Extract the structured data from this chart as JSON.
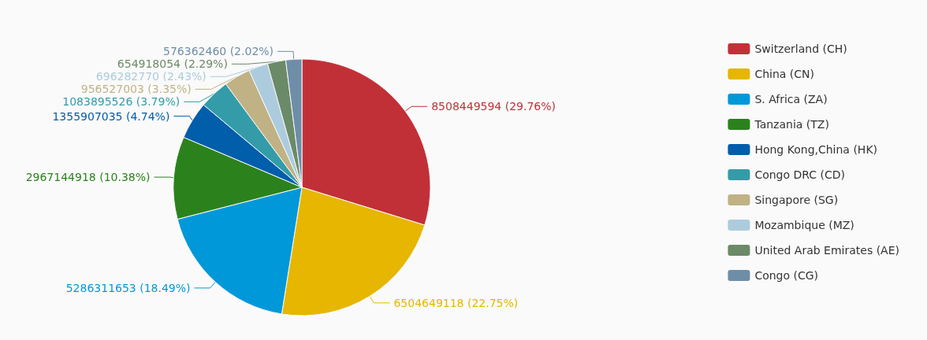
{
  "chart_data": {
    "type": "pie",
    "categories": [
      "Switzerland (CH)",
      "China (CN)",
      "S. Africa (ZA)",
      "Tanzania (TZ)",
      "Hong Kong,China (HK)",
      "Congo DRC (CD)",
      "Singapore (SG)",
      "Mozambique (MZ)",
      "United Arab Emirates (AE)",
      "Congo (CG)"
    ],
    "values": [
      8508449594,
      6504649118,
      5286311653,
      2967144918,
      1355907035,
      1083895526,
      956527003,
      696282770,
      654918054,
      576362460
    ],
    "value_labels": [
      "8508449594 (29.76%)",
      "6504649118 (22.75%)",
      "5286311653 (18.49%)",
      "2967144918 (10.38%)",
      "1355907035 (4.74%)",
      "1083895526 (3.79%)",
      "956527003 (3.35%)",
      "696282770 (2.43%)",
      "654918054 (2.29%)",
      "576362460 (2.02%)"
    ],
    "colors": [
      "#c23037",
      "#e6b600",
      "#0098d9",
      "#2b821d",
      "#005eaa",
      "#339ca8",
      "#c0b285",
      "#acccdd",
      "#6b8a68",
      "#6e8ea8"
    ],
    "legend": "right"
  }
}
